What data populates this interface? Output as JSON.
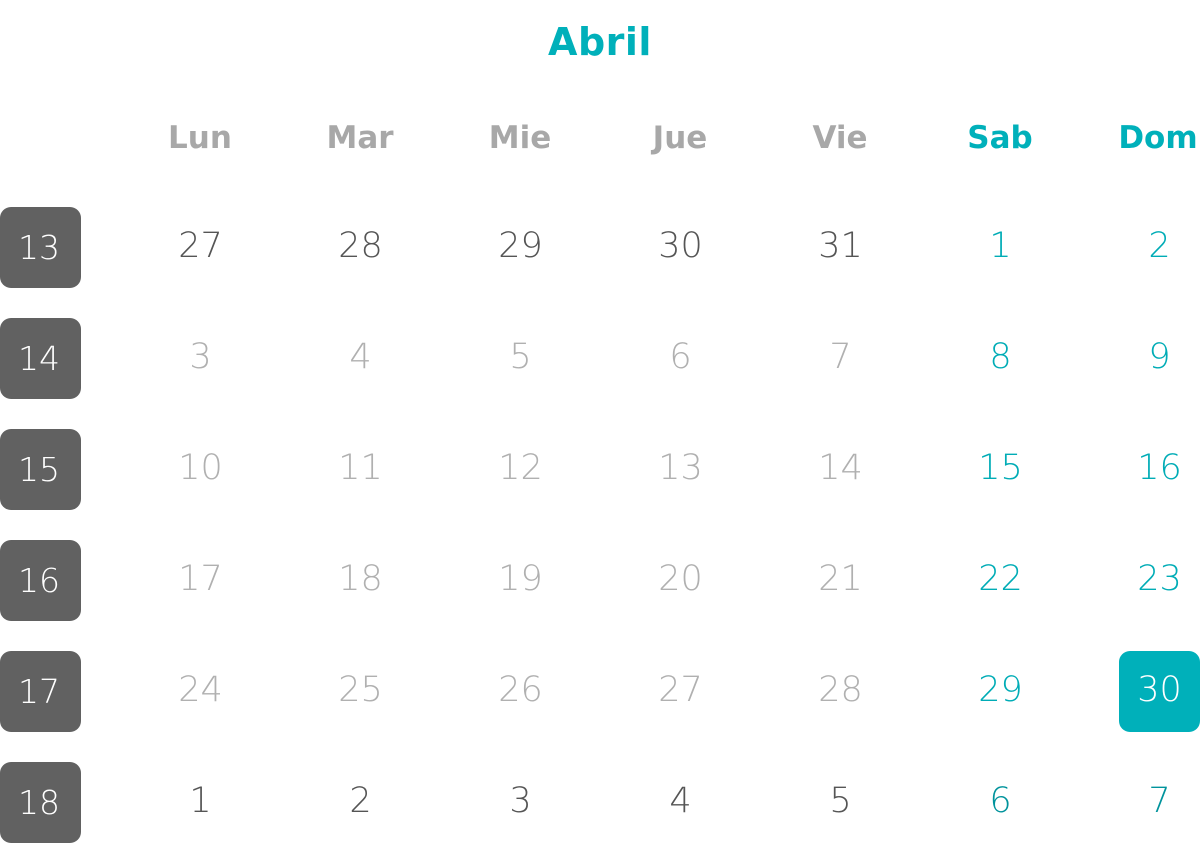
{
  "calendar": {
    "month_title": "Abril",
    "weekdays": [
      "Lun",
      "Mar",
      "Mie",
      "Jue",
      "Vie",
      "Sab",
      "Dom"
    ],
    "weeks": [
      {
        "number": "13",
        "days": [
          "27",
          "28",
          "29",
          "30",
          "31",
          "1",
          "2"
        ]
      },
      {
        "number": "14",
        "days": [
          "3",
          "4",
          "5",
          "6",
          "7",
          "8",
          "9"
        ]
      },
      {
        "number": "15",
        "days": [
          "10",
          "11",
          "12",
          "13",
          "14",
          "15",
          "16"
        ]
      },
      {
        "number": "16",
        "days": [
          "17",
          "18",
          "19",
          "20",
          "21",
          "22",
          "23"
        ]
      },
      {
        "number": "17",
        "days": [
          "24",
          "25",
          "26",
          "27",
          "28",
          "29",
          "30"
        ]
      },
      {
        "number": "18",
        "days": [
          "1",
          "2",
          "3",
          "4",
          "5",
          "6",
          "7"
        ]
      }
    ],
    "selected_day": "30",
    "colors": {
      "accent": "#00B0BA",
      "week_badge": "#616161",
      "muted_text": "#B0B0B0",
      "dark_text": "#555555"
    }
  }
}
